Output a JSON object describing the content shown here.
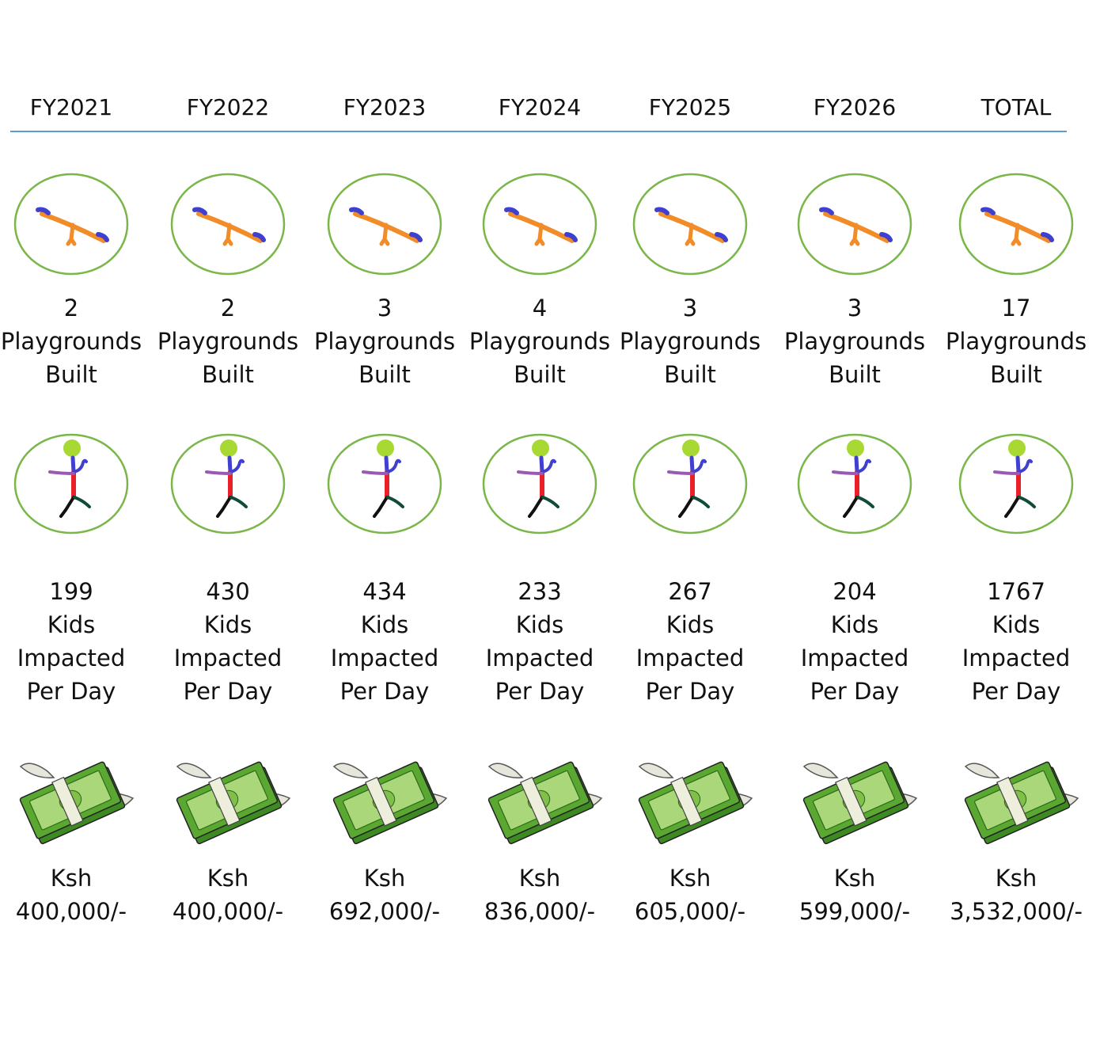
{
  "header": {
    "columns": [
      {
        "label": "FY2021",
        "playgrounds": "2",
        "playgrounds_line1": "Playgrounds",
        "playgrounds_line2": "Built",
        "kids": "199",
        "kids_line1": "Kids",
        "kids_line2": "Impacted",
        "kids_line3": "Per Day",
        "currency": "Ksh",
        "amount": "400,000/-"
      },
      {
        "label": "FY2022",
        "playgrounds": "2",
        "playgrounds_line1": "Playgrounds",
        "playgrounds_line2": "Built",
        "kids": "430",
        "kids_line1": "Kids",
        "kids_line2": "Impacted",
        "kids_line3": "Per Day",
        "currency": "Ksh",
        "amount": "400,000/-"
      },
      {
        "label": "FY2023",
        "playgrounds": "3",
        "playgrounds_line1": "Playgrounds",
        "playgrounds_line2": "Built",
        "kids": "434",
        "kids_line1": "Kids",
        "kids_line2": "Impacted",
        "kids_line3": "Per Day",
        "currency": "Ksh",
        "amount": "692,000/-"
      },
      {
        "label": "FY2024",
        "playgrounds": "4",
        "playgrounds_line1": "Playgrounds",
        "playgrounds_line2": "Built",
        "kids": "233",
        "kids_line1": "Kids",
        "kids_line2": "Impacted",
        "kids_line3": "Per Day",
        "currency": "Ksh",
        "amount": "836,000/-"
      },
      {
        "label": "FY2025",
        "playgrounds": "3",
        "playgrounds_line1": "Playgrounds",
        "playgrounds_line2": "Built",
        "kids": "267",
        "kids_line1": "Kids",
        "kids_line2": "Impacted",
        "kids_line3": "Per Day",
        "currency": "Ksh",
        "amount": "605,000/-"
      },
      {
        "label": "FY2026",
        "playgrounds": "3",
        "playgrounds_line1": "Playgrounds",
        "playgrounds_line2": "Built",
        "kids": "204",
        "kids_line1": "Kids",
        "kids_line2": "Impacted",
        "kids_line3": "Per Day",
        "currency": "Ksh",
        "amount": "599,000/-"
      },
      {
        "label": "TOTAL",
        "playgrounds": "17",
        "playgrounds_line1": "Playgrounds",
        "playgrounds_line2": "Built",
        "kids": "1767",
        "kids_line1": "Kids",
        "kids_line2": "Impacted",
        "kids_line3": "Per Day",
        "currency": "Ksh",
        "amount": "3,532,000/-"
      }
    ]
  },
  "icons": {
    "playground": "seesaw-icon",
    "kids": "stick-figure-kid-icon",
    "funds": "flying-money-icon"
  },
  "colors": {
    "rule": "#5b9bd5",
    "circle": "#7ab648",
    "seesaw_plank": "#f28c28",
    "seesaw_seat": "#3f3fd0",
    "money_green": "#5aa832",
    "wing": "#e6e6dc"
  }
}
